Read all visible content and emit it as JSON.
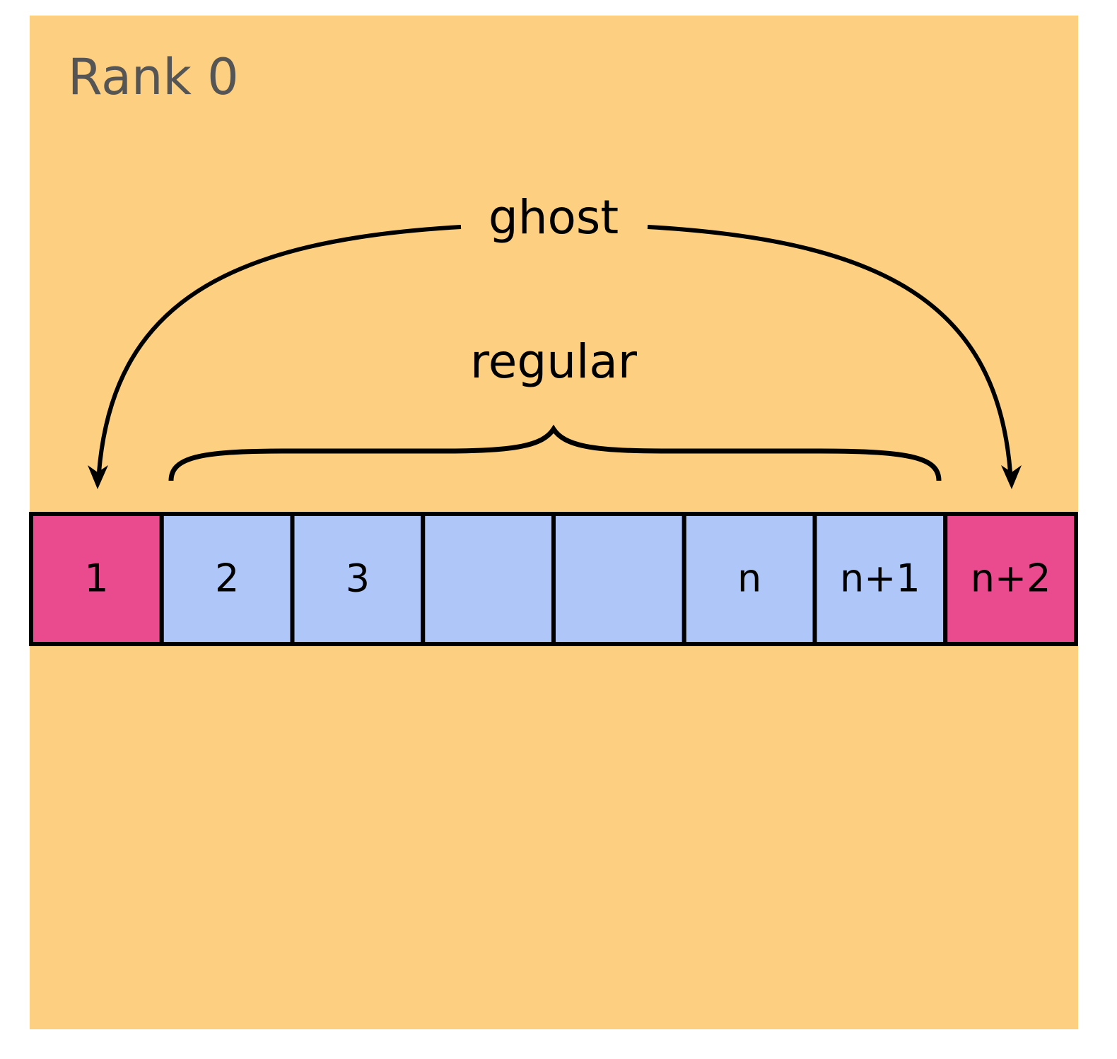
{
  "title": "Rank 0",
  "labels": {
    "ghost": "ghost",
    "regular": "regular"
  },
  "cells": [
    {
      "label": "1",
      "color": "#ea4a8e"
    },
    {
      "label": "2",
      "color": "#aec6f8"
    },
    {
      "label": "3",
      "color": "#aec6f8"
    },
    {
      "color": "#aec6f8"
    },
    {
      "color": "#aec6f8"
    },
    {
      "label": "n",
      "color": "#aec6f8"
    },
    {
      "label": "n+1",
      "color": "#aec6f8"
    },
    {
      "label": "n+2",
      "color": "#ea4a8e"
    }
  ]
}
